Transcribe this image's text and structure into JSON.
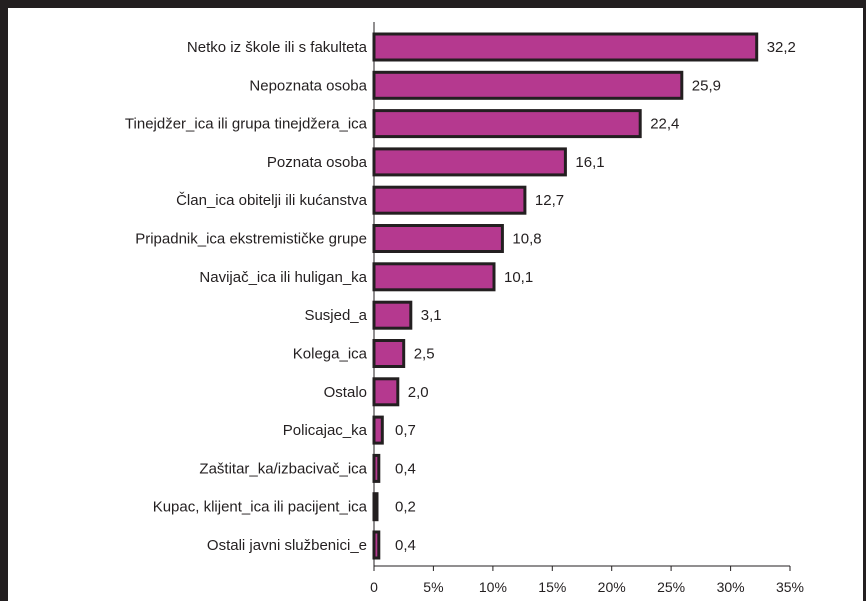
{
  "chart_data": {
    "type": "bar",
    "orientation": "horizontal",
    "categories": [
      "Netko iz škole ili s fakulteta",
      "Nepoznata osoba",
      "Tinejdžer_ica ili grupa tinejdžera_ica",
      "Poznata osoba",
      "Član_ica obitelji ili kućanstva",
      "Pripadnik_ica ekstremističke grupe",
      "Navijač_ica ili huligan_ka",
      "Susjed_a",
      "Kolega_ica",
      "Ostalo",
      "Policajac_ka",
      "Zaštitar_ka/izbacivač_ica",
      "Kupac, klijent_ica ili pacijent_ica",
      "Ostali javni službenici_e"
    ],
    "values": [
      32.2,
      25.9,
      22.4,
      16.1,
      12.7,
      10.8,
      10.1,
      3.1,
      2.5,
      2.0,
      0.7,
      0.4,
      0.2,
      0.4
    ],
    "value_labels": [
      "32,2",
      "25,9",
      "22,4",
      "16,1",
      "12,7",
      "10,8",
      "10,1",
      "3,1",
      "2,5",
      "2,0",
      "0,7",
      "0,4",
      "0,2",
      "0,4"
    ],
    "xlim": [
      0,
      35
    ],
    "x_ticks": [
      0,
      5,
      10,
      15,
      20,
      25,
      30,
      35
    ],
    "x_tick_labels": [
      "0",
      "5%",
      "10%",
      "15%",
      "20%",
      "25%",
      "30%",
      "35%"
    ],
    "title": "",
    "xlabel": "",
    "ylabel": "",
    "grid": false,
    "bar_color": "#b5398f",
    "bar_outline_color": "#231f20"
  }
}
